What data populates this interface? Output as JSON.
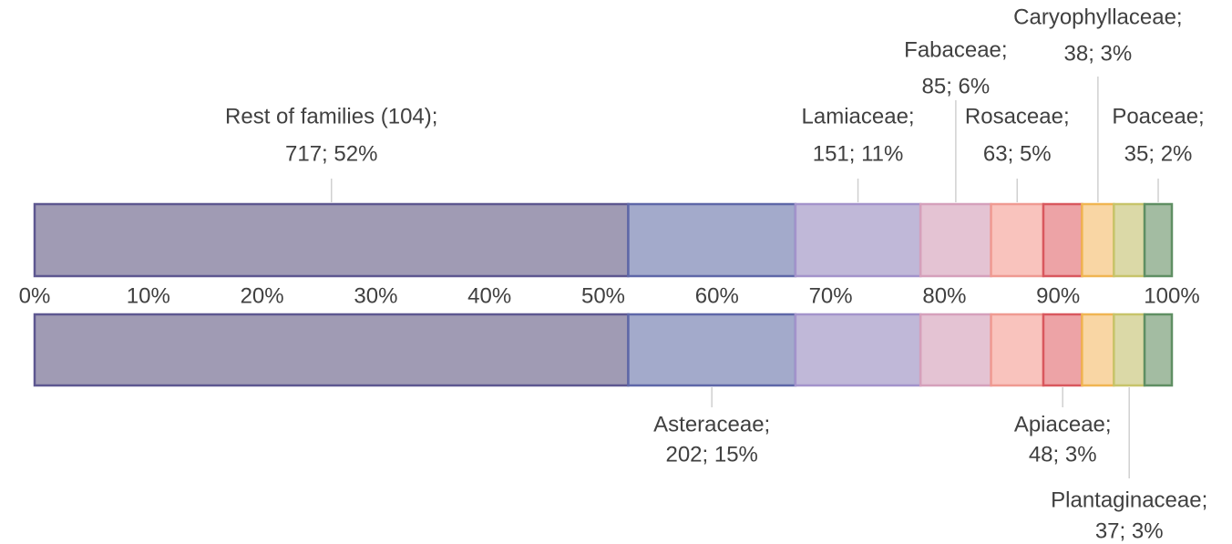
{
  "chart_data": {
    "type": "stacked_bar",
    "xlim": [
      0,
      100
    ],
    "xticks": [
      {
        "value": 0,
        "label": "0%"
      },
      {
        "value": 10,
        "label": "10%"
      },
      {
        "value": 20,
        "label": "20%"
      },
      {
        "value": 30,
        "label": "30%"
      },
      {
        "value": 40,
        "label": "40%"
      },
      {
        "value": 50,
        "label": "50%"
      },
      {
        "value": 60,
        "label": "60%"
      },
      {
        "value": 70,
        "label": "70%"
      },
      {
        "value": 80,
        "label": "80%"
      },
      {
        "value": 90,
        "label": "90%"
      },
      {
        "value": 100,
        "label": "100%"
      }
    ],
    "series": [
      {
        "name": "Rest of families (104);",
        "color": "#a09bb4",
        "border": "#5d5790",
        "values": [
          52.2
        ],
        "value_labels": [
          "717; 52%"
        ]
      },
      {
        "name": "Asteraceae;",
        "color": "#a3aacb",
        "border": "#5e67a8",
        "values": [
          14.7
        ],
        "value_labels": [
          "202; 15%"
        ]
      },
      {
        "name": "Lamiaceae;",
        "color": "#c0b8d8",
        "border": "#a393cb",
        "values": [
          11.0
        ],
        "value_labels": [
          "151; 11%"
        ]
      },
      {
        "name": "Fabaceae;",
        "color": "#e4c3d3",
        "border": "#d5a0bb",
        "values": [
          6.2
        ],
        "value_labels": [
          "85; 6%"
        ]
      },
      {
        "name": "Rosaceae;",
        "color": "#f9c3bd",
        "border": "#ef9a92",
        "values": [
          4.6
        ],
        "value_labels": [
          "63; 5%"
        ]
      },
      {
        "name": "Apiaceae;",
        "color": "#eda3a6",
        "border": "#d9585e",
        "values": [
          3.4
        ],
        "value_labels": [
          "48; 3%"
        ]
      },
      {
        "name": "Caryophyllaceae;",
        "color": "#f9d6a4",
        "border": "#f0b552",
        "values": [
          2.8
        ],
        "value_labels": [
          "38; 3%"
        ]
      },
      {
        "name": "Plantaginaceae;",
        "color": "#dbd9a7",
        "border": "#c7c46a",
        "values": [
          2.7
        ],
        "value_labels": [
          "37; 3%"
        ]
      },
      {
        "name": "Poaceae;",
        "color": "#a3bca2",
        "border": "#5f8f63",
        "values": [
          2.4
        ],
        "value_labels": [
          "35; 2%"
        ]
      }
    ]
  }
}
